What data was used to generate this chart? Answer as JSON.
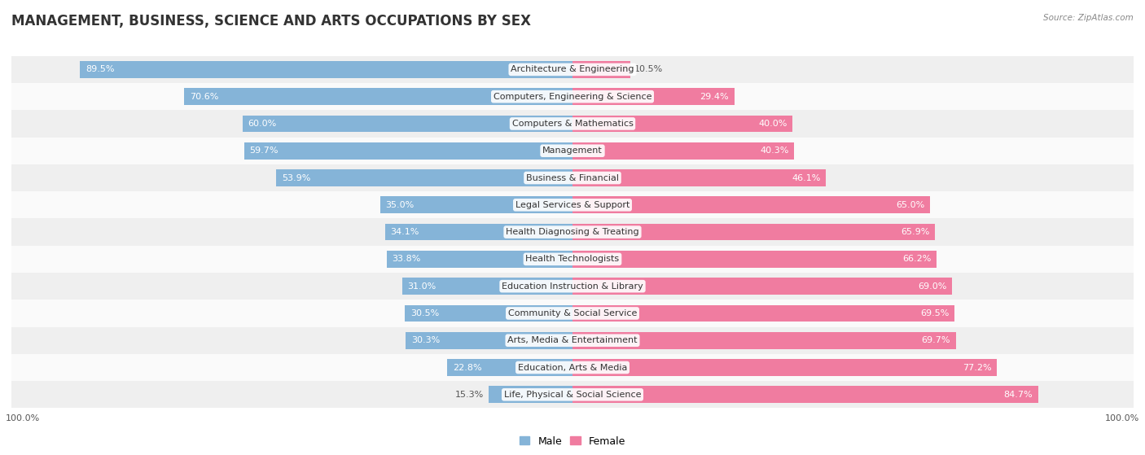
{
  "title": "MANAGEMENT, BUSINESS, SCIENCE AND ARTS OCCUPATIONS BY SEX",
  "source": "Source: ZipAtlas.com",
  "categories": [
    "Architecture & Engineering",
    "Computers, Engineering & Science",
    "Computers & Mathematics",
    "Management",
    "Business & Financial",
    "Legal Services & Support",
    "Health Diagnosing & Treating",
    "Health Technologists",
    "Education Instruction & Library",
    "Community & Social Service",
    "Arts, Media & Entertainment",
    "Education, Arts & Media",
    "Life, Physical & Social Science"
  ],
  "male_pct": [
    89.5,
    70.6,
    60.0,
    59.7,
    53.9,
    35.0,
    34.1,
    33.8,
    31.0,
    30.5,
    30.3,
    22.8,
    15.3
  ],
  "female_pct": [
    10.5,
    29.4,
    40.0,
    40.3,
    46.1,
    65.0,
    65.9,
    66.2,
    69.0,
    69.5,
    69.7,
    77.2,
    84.7
  ],
  "male_color": "#85b4d8",
  "female_color": "#f07ca0",
  "bg_color": "#ffffff",
  "row_bg_even": "#efefef",
  "row_bg_odd": "#fafafa",
  "title_fontsize": 12,
  "label_fontsize": 8,
  "pct_fontsize": 8,
  "legend_fontsize": 9,
  "axis_label_fontsize": 8,
  "bar_height": 0.62,
  "inside_label_threshold": 18
}
